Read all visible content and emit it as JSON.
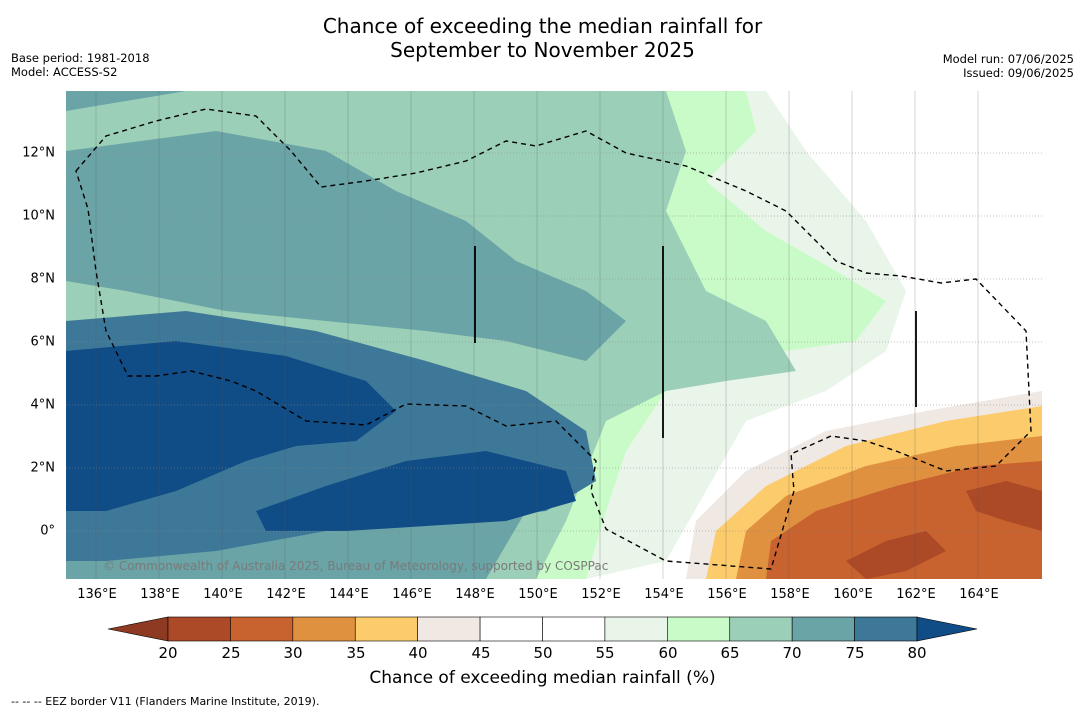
{
  "title_line1": "Chance of exceeding the median rainfall for",
  "title_line2": "September to November 2025",
  "base_period": "Base period: 1981-2018",
  "model": "Model: ACCESS-S2",
  "model_run": "Model run: 07/06/2025",
  "issued": "Issued: 09/06/2025",
  "copyright": "© Commonwealth of Australia 2025, Bureau of Meteorology, supported by COSPPac",
  "lat_labels": [
    "12°N",
    "10°N",
    "8°N",
    "6°N",
    "4°N",
    "2°N",
    "0°"
  ],
  "lon_labels": [
    "136°E",
    "138°E",
    "140°E",
    "142°E",
    "144°E",
    "146°E",
    "148°E",
    "150°E",
    "152°E",
    "154°E",
    "156°E",
    "158°E",
    "160°E",
    "162°E",
    "164°E"
  ],
  "colorbar": {
    "ticks": [
      "20",
      "25",
      "30",
      "35",
      "40",
      "45",
      "50",
      "55",
      "60",
      "65",
      "70",
      "75",
      "80"
    ],
    "label": "Chance of exceeding median rainfall (%)",
    "colors": [
      "#8e3a22",
      "#ac4a28",
      "#c8622f",
      "#e09140",
      "#fccb6b",
      "#efe8e3",
      "#ffffff",
      "#ffffff",
      "#e9f5e8",
      "#c9fbc8",
      "#9ccfb7",
      "#6aa4a6",
      "#3e7898",
      "#104c85"
    ]
  },
  "footnote": "-- -- -- EEZ border V11 (Flanders Marine Institute, 2019)."
}
